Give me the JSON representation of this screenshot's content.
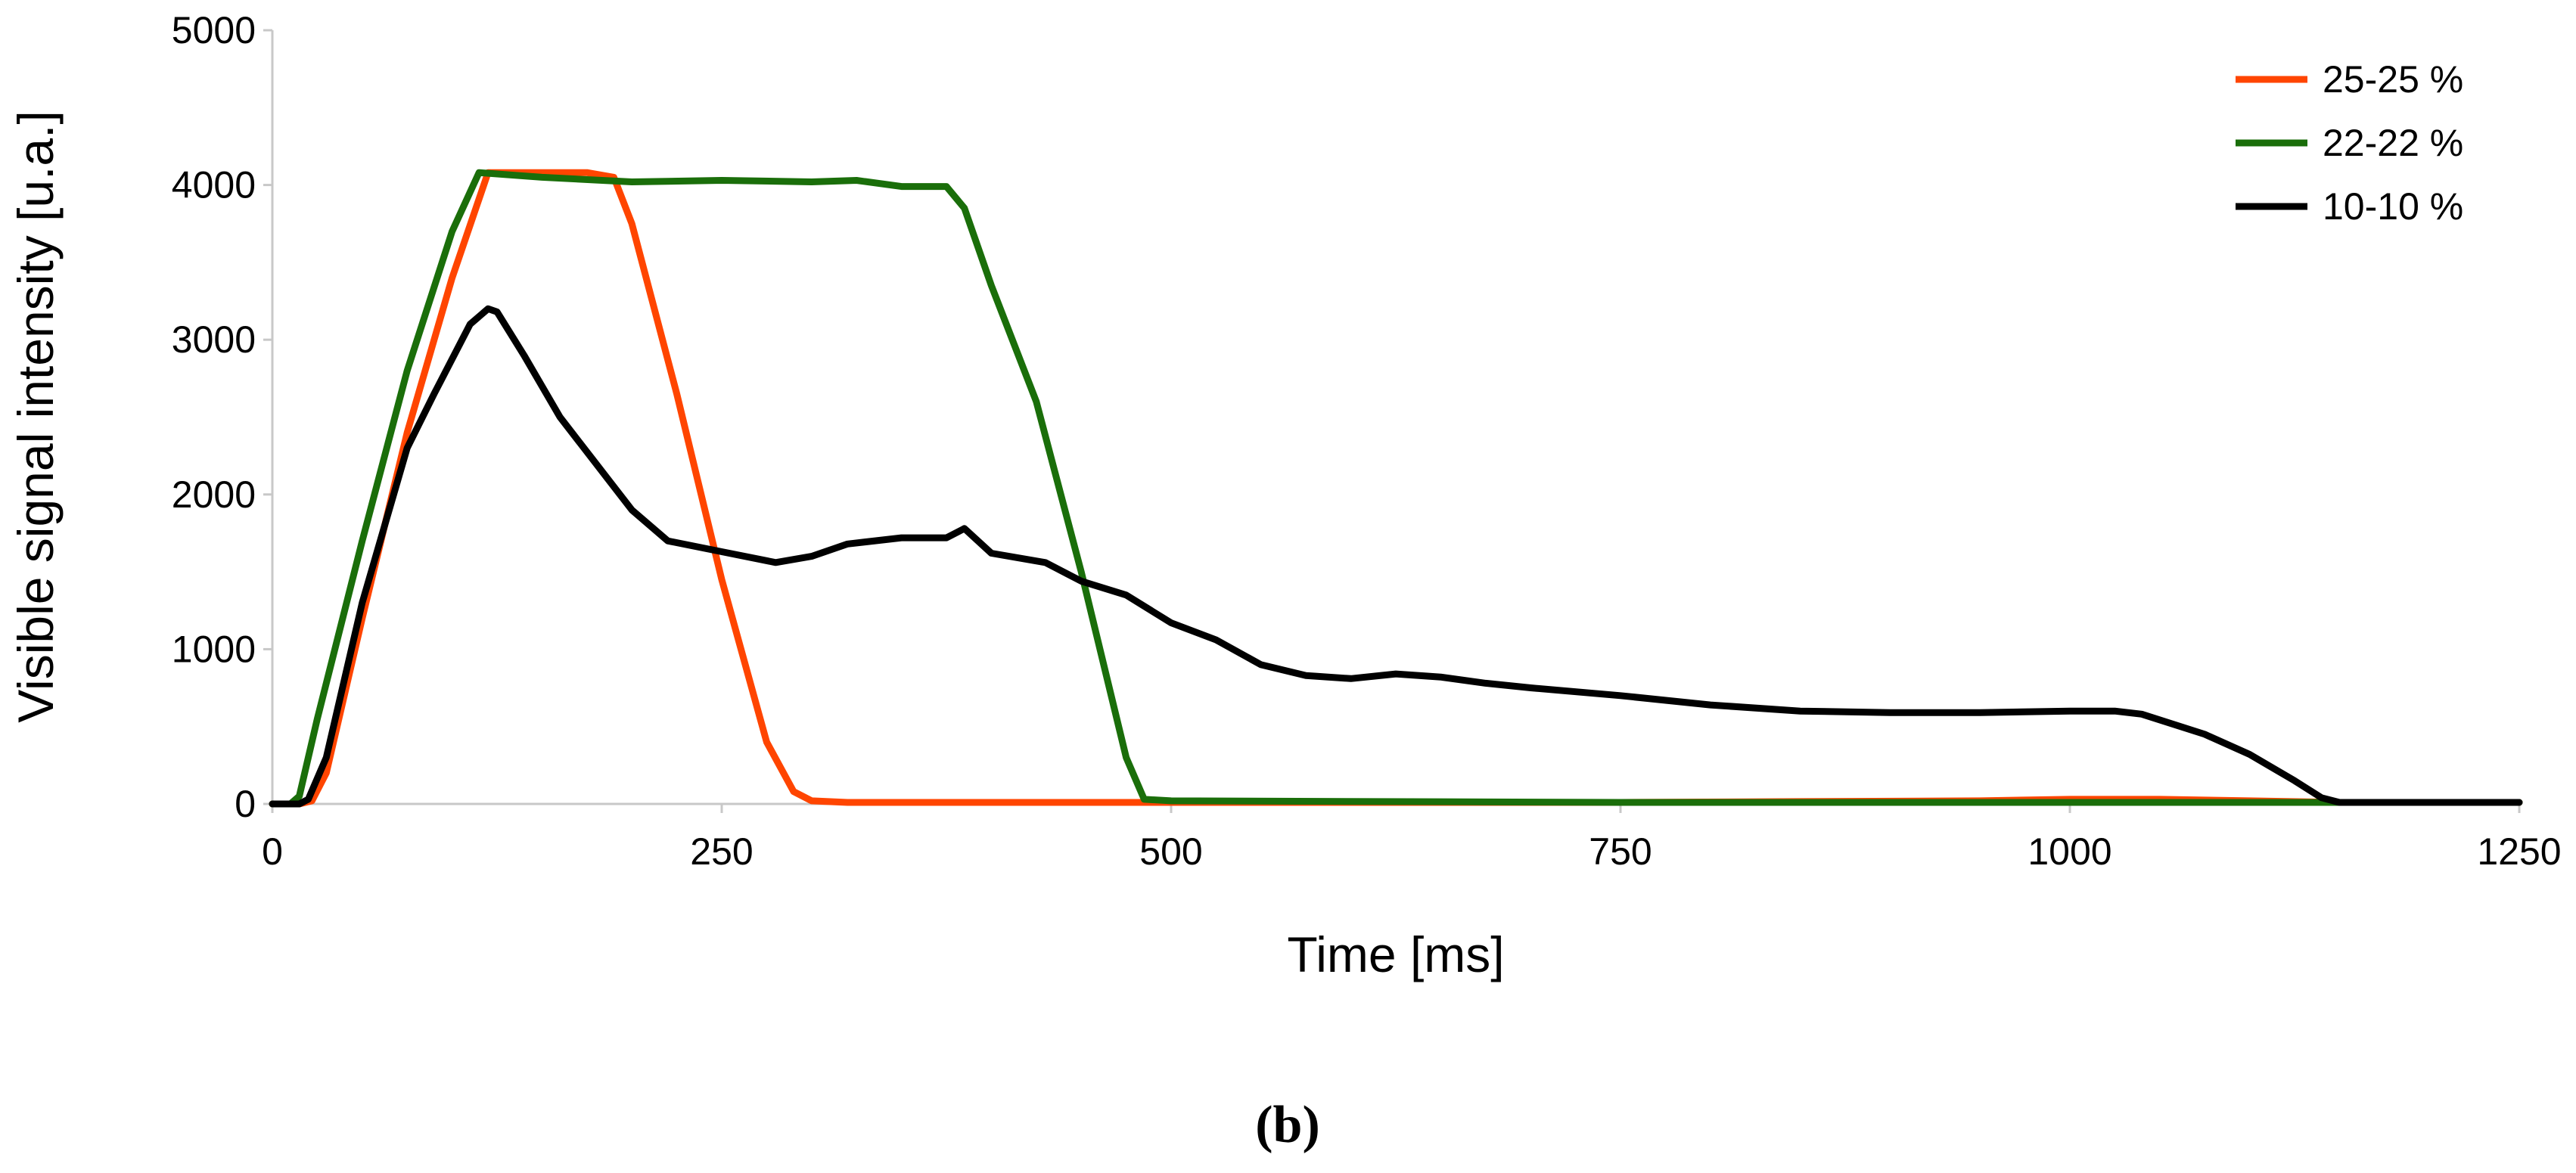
{
  "chart_data": {
    "type": "line",
    "title": "",
    "xlabel": "Time [ms]",
    "ylabel": "Visible signal intensity [u.a.]",
    "xlim": [
      0,
      1250
    ],
    "ylim": [
      0,
      5000
    ],
    "xticks": [
      0,
      250,
      500,
      750,
      1000,
      1250
    ],
    "yticks": [
      0,
      1000,
      2000,
      3000,
      4000,
      5000
    ],
    "grid": false,
    "legend_position": "top-right",
    "caption": "(b)",
    "series": [
      {
        "name": "25-25 %",
        "color": "#ff4500",
        "x": [
          0,
          15,
          22,
          30,
          50,
          75,
          100,
          120,
          150,
          175,
          190,
          200,
          225,
          250,
          275,
          290,
          300,
          320,
          400,
          500,
          600,
          750,
          850,
          950,
          1000,
          1050,
          1100,
          1150,
          1250
        ],
        "y": [
          0,
          0,
          20,
          200,
          1200,
          2400,
          3400,
          4080,
          4080,
          4080,
          4050,
          3750,
          2650,
          1450,
          400,
          80,
          20,
          10,
          10,
          10,
          10,
          10,
          15,
          20,
          30,
          30,
          20,
          10,
          10
        ]
      },
      {
        "name": "22-22 %",
        "color": "#1a6e0a",
        "x": [
          0,
          10,
          15,
          25,
          50,
          75,
          100,
          115,
          150,
          200,
          250,
          300,
          325,
          350,
          375,
          385,
          400,
          425,
          450,
          475,
          485,
          500,
          750,
          1000,
          1100,
          1250
        ],
        "y": [
          0,
          0,
          50,
          550,
          1700,
          2800,
          3700,
          4080,
          4050,
          4020,
          4030,
          4020,
          4030,
          3990,
          3990,
          3850,
          3350,
          2600,
          1500,
          300,
          30,
          20,
          10,
          10,
          10,
          10
        ]
      },
      {
        "name": "10-10 %",
        "color": "#000000",
        "x": [
          0,
          15,
          20,
          30,
          50,
          75,
          90,
          110,
          120,
          125,
          140,
          160,
          180,
          200,
          220,
          250,
          280,
          300,
          320,
          350,
          375,
          385,
          400,
          430,
          450,
          475,
          500,
          525,
          550,
          575,
          600,
          625,
          650,
          675,
          700,
          750,
          800,
          850,
          900,
          950,
          1000,
          1025,
          1040,
          1075,
          1100,
          1125,
          1140,
          1150,
          1250
        ],
        "y": [
          0,
          0,
          30,
          300,
          1300,
          2300,
          2650,
          3100,
          3200,
          3180,
          2900,
          2500,
          2200,
          1900,
          1700,
          1630,
          1560,
          1600,
          1680,
          1720,
          1720,
          1780,
          1620,
          1560,
          1440,
          1350,
          1170,
          1060,
          900,
          830,
          810,
          840,
          820,
          780,
          750,
          700,
          640,
          600,
          590,
          590,
          600,
          600,
          580,
          450,
          320,
          150,
          40,
          10,
          10
        ]
      }
    ]
  }
}
